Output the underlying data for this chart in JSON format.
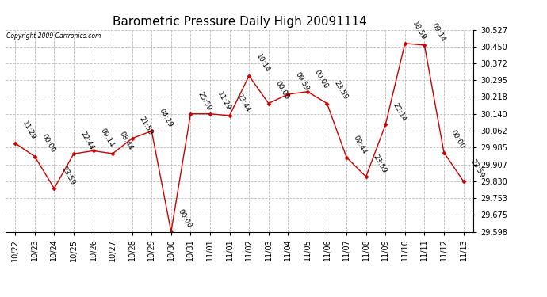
{
  "title": "Barometric Pressure Daily High 20091114",
  "copyright": "Copyright 2009 Cartronics.com",
  "x_labels": [
    "10/22",
    "10/23",
    "10/24",
    "10/25",
    "10/26",
    "10/27",
    "10/28",
    "10/29",
    "10/30",
    "10/31",
    "11/01",
    "11/01",
    "11/02",
    "11/03",
    "11/04",
    "11/05",
    "11/06",
    "11/07",
    "11/08",
    "11/09",
    "11/10",
    "11/11",
    "11/12",
    "11/13"
  ],
  "y_values": [
    30.005,
    29.944,
    29.797,
    29.956,
    29.97,
    29.957,
    30.027,
    30.061,
    29.598,
    30.14,
    30.14,
    30.132,
    30.315,
    30.188,
    30.23,
    30.242,
    30.188,
    29.94,
    29.851,
    30.09,
    30.464,
    30.456,
    29.962,
    29.83
  ],
  "time_labels": [
    "11:29",
    "00:00",
    "23:59",
    "22:44",
    "09:14",
    "08:44",
    "21:59",
    "04:29",
    "00:00",
    "25:59",
    "11:29",
    "23:44",
    "10:14",
    "00:00",
    "09:59",
    "00:00",
    "23:59",
    "09:44",
    "23:59",
    "22:14",
    "18:59",
    "09:14",
    "00:00",
    "23:59"
  ],
  "ylim_min": 29.598,
  "ylim_max": 30.527,
  "ytick_values": [
    29.598,
    29.675,
    29.753,
    29.83,
    29.907,
    29.985,
    30.062,
    30.14,
    30.218,
    30.295,
    30.372,
    30.45,
    30.527
  ],
  "line_color": "#cc0000",
  "marker_color": "#cc0000",
  "bg_color": "#ffffff",
  "grid_color": "#bbbbbb",
  "title_fontsize": 11,
  "label_fontsize": 7,
  "annotation_fontsize": 6.5
}
